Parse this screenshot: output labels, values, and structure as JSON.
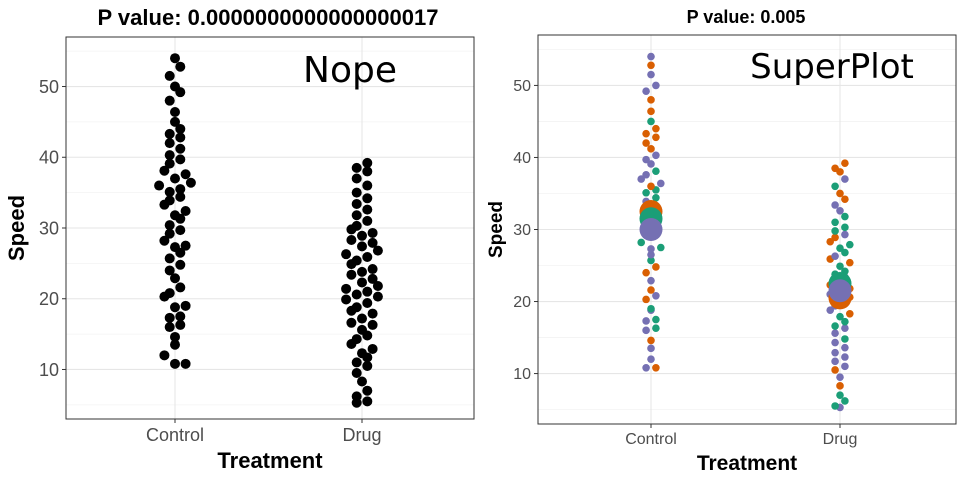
{
  "chart_data": [
    {
      "type": "scatter",
      "subtype": "beeswarm",
      "title": "P value: 0.0000000000000000017",
      "annotation": "Nope",
      "xlabel": "Treatment",
      "ylabel": "Speed",
      "categories": [
        "Control",
        "Drug"
      ],
      "ylim": [
        3,
        57
      ],
      "yticks": [
        10,
        20,
        30,
        40,
        50
      ],
      "grid": true,
      "legend": "none",
      "point_color": "#000000",
      "series": [
        {
          "category": "Control",
          "values": [
            10.8,
            10.8,
            12,
            13.5,
            14.6,
            16,
            16.3,
            17.3,
            17.5,
            18.8,
            19,
            20.3,
            20.8,
            21.6,
            22.9,
            24,
            24.8,
            25.7,
            26.5,
            27.3,
            27.5,
            28.2,
            29.2,
            29.7,
            30.4,
            31.3,
            31.8,
            32.4,
            33.3,
            33.9,
            34.4,
            35.1,
            35.5,
            36,
            36.4,
            37,
            37.6,
            38.1,
            39.1,
            39.7,
            40.3,
            41.2,
            42,
            42.8,
            43.3,
            44,
            45,
            46.4,
            48,
            49.2,
            50,
            51.5,
            52.8,
            54
          ]
        },
        {
          "category": "Drug",
          "values": [
            5.3,
            5.5,
            6.2,
            7,
            8.3,
            9.5,
            10.5,
            11,
            11.7,
            12.3,
            12.9,
            13.6,
            14.3,
            14.8,
            15.6,
            16.3,
            16.6,
            17.2,
            17.9,
            18.3,
            18.8,
            19.4,
            19.9,
            20.3,
            20.6,
            21,
            21.4,
            21.8,
            22.3,
            22.8,
            23.4,
            23.8,
            24.2,
            24.9,
            25.4,
            25.9,
            26.3,
            26.8,
            27.4,
            27.9,
            28.3,
            28.9,
            29.3,
            29.8,
            30.3,
            31,
            31.8,
            32.6,
            33.4,
            34.2,
            35,
            36,
            37,
            38,
            38.5,
            39.2
          ]
        }
      ]
    },
    {
      "type": "scatter",
      "subtype": "superplot",
      "title": "P value: 0.005",
      "annotation": "SuperPlot",
      "xlabel": "Treatment",
      "ylabel": "Speed",
      "categories": [
        "Control",
        "Drug"
      ],
      "ylim": [
        3,
        57
      ],
      "yticks": [
        10,
        20,
        30,
        40,
        50
      ],
      "grid": true,
      "legend": "none",
      "replicate_colors": [
        "#d95f02",
        "#1b9e77",
        "#7570b3"
      ],
      "series": [
        {
          "category": "Control",
          "values": [
            10.8,
            10.8,
            12,
            13.5,
            14.6,
            16,
            16.3,
            17.3,
            17.5,
            18.8,
            19,
            20.3,
            20.8,
            21.6,
            22.9,
            24,
            24.8,
            25.7,
            26.5,
            27.3,
            27.5,
            28.2,
            29.2,
            29.7,
            30.4,
            31.3,
            31.8,
            32.4,
            33.3,
            33.9,
            34.4,
            35.1,
            35.5,
            36,
            36.4,
            37,
            37.6,
            38.1,
            39.1,
            39.7,
            40.3,
            41.2,
            42,
            42.8,
            43.3,
            44,
            45,
            46.4,
            48,
            49.2,
            50,
            51.5,
            52.8,
            54
          ],
          "replicate_means": [
            {
              "replicate": 1,
              "color": "#d95f02",
              "value": 32.5
            },
            {
              "replicate": 2,
              "color": "#1b9e77",
              "value": 31.5
            },
            {
              "replicate": 3,
              "color": "#7570b3",
              "value": 30
            }
          ]
        },
        {
          "category": "Drug",
          "values": [
            5.3,
            5.5,
            6.2,
            7,
            8.3,
            9.5,
            10.5,
            11,
            11.7,
            12.3,
            12.9,
            13.6,
            14.3,
            14.8,
            15.6,
            16.3,
            16.6,
            17.2,
            17.9,
            18.3,
            18.8,
            19.4,
            19.9,
            20.3,
            20.6,
            21,
            21.4,
            21.8,
            22.3,
            22.8,
            23.4,
            23.8,
            24.2,
            24.9,
            25.4,
            25.9,
            26.3,
            26.8,
            27.4,
            27.9,
            28.3,
            28.9,
            29.3,
            29.8,
            30.3,
            31,
            31.8,
            32.6,
            33.4,
            34.2,
            35,
            36,
            37,
            38,
            38.5,
            39.2
          ],
          "replicate_means": [
            {
              "replicate": 1,
              "color": "#d95f02",
              "value": 20.5
            },
            {
              "replicate": 2,
              "color": "#1b9e77",
              "value": 22.5
            },
            {
              "replicate": 3,
              "color": "#7570b3",
              "value": 21.5
            }
          ]
        }
      ]
    }
  ]
}
